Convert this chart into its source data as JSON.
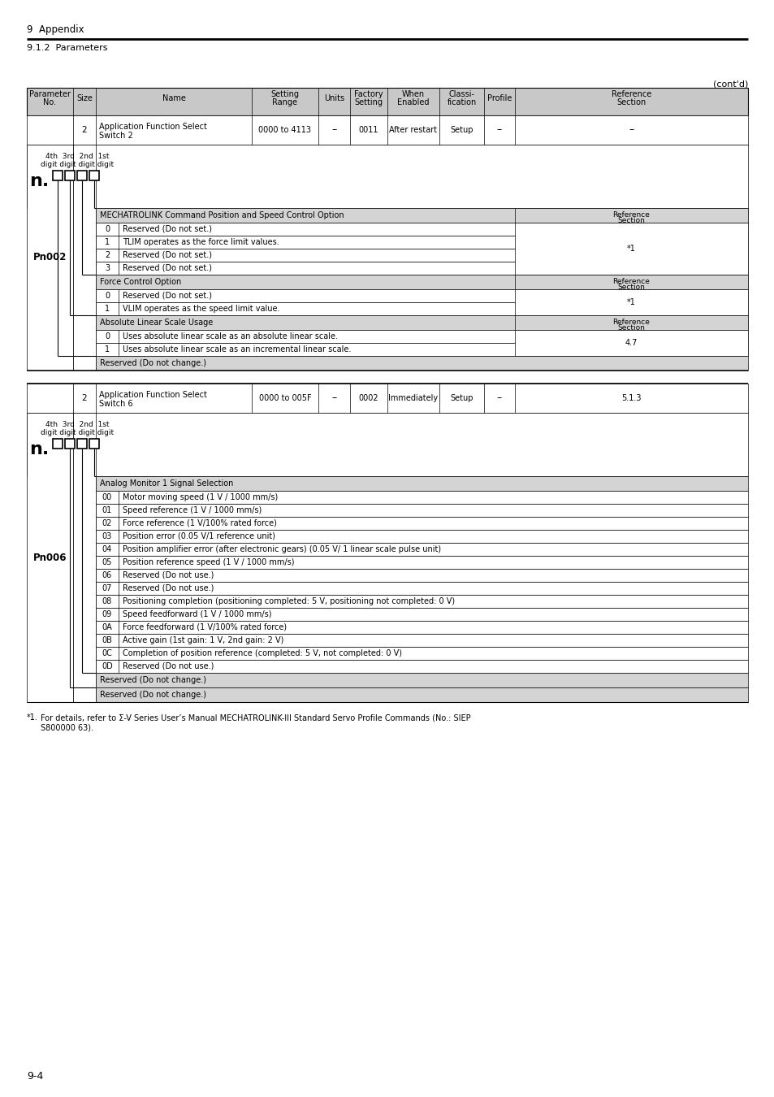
{
  "page_title": "9  Appendix",
  "section": "9.1.2  Parameters",
  "contd": "(cont'd)",
  "page_num": "9-4",
  "bg_color": "#ffffff",
  "header_bg": "#c8c8c8",
  "section_bg": "#d4d4d4",
  "footnote_line1": "*1.   For details, refer to Σ-V Series User’s Manual MECHATROLINK-III Standard Servo Profile Commands (No.: SIEP",
  "footnote_line2": "        S800000 63).",
  "pn002_rows": [
    [
      "0",
      "Reserved (Do not set.)"
    ],
    [
      "1",
      "TLIM operates as the force limit values."
    ],
    [
      "2",
      "Reserved (Do not set.)"
    ],
    [
      "3",
      "Reserved (Do not set.)"
    ]
  ],
  "force_rows": [
    [
      "0",
      "Reserved (Do not set.)"
    ],
    [
      "1",
      "VLIM operates as the speed limit value."
    ]
  ],
  "abs_rows": [
    [
      "0",
      "Uses absolute linear scale as an absolute linear scale."
    ],
    [
      "1",
      "Uses absolute linear scale as an incremental linear scale."
    ]
  ],
  "ana_rows": [
    [
      "00",
      "Motor moving speed (1 V / 1000 mm/s)"
    ],
    [
      "01",
      "Speed reference (1 V / 1000 mm/s)"
    ],
    [
      "02",
      "Force reference (1 V/100% rated force)"
    ],
    [
      "03",
      "Position error (0.05 V/1 reference unit)"
    ],
    [
      "04",
      "Position amplifier error (after electronic gears) (0.05 V/ 1 linear scale pulse unit)"
    ],
    [
      "05",
      "Position reference speed (1 V / 1000 mm/s)"
    ],
    [
      "06",
      "Reserved (Do not use.)"
    ],
    [
      "07",
      "Reserved (Do not use.)"
    ],
    [
      "08",
      "Positioning completion (positioning completed: 5 V, positioning not completed: 0 V)"
    ],
    [
      "09",
      "Speed feedforward (1 V / 1000 mm/s)"
    ],
    [
      "0A",
      "Force feedforward (1 V/100% rated force)"
    ],
    [
      "0B",
      "Active gain (1st gain: 1 V, 2nd gain: 2 V)"
    ],
    [
      "0C",
      "Completion of position reference (completed: 5 V, not completed: 0 V)"
    ],
    [
      "0D",
      "Reserved (Do not use.)"
    ]
  ]
}
